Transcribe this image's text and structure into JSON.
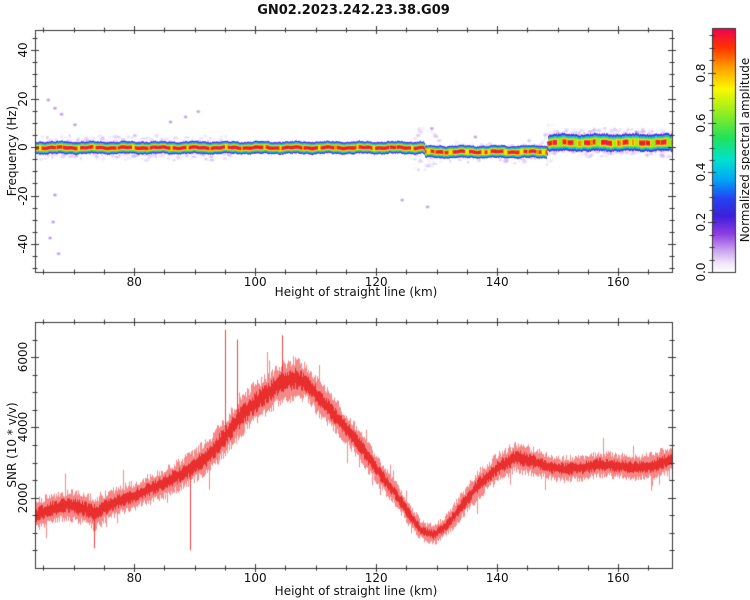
{
  "title": "GN02.2023.242.23.38.G09",
  "figure_bg": "#ffffff",
  "axis_color": "#333333",
  "chart_data": [
    {
      "type": "heatmap",
      "title": "",
      "xlabel": "Height of straight line (km)",
      "ylabel": "Frequency (Hz)",
      "xlim": [
        63.6,
        168.9
      ],
      "ylim": [
        -51.5,
        48.2
      ],
      "x_major_ticks": [
        80,
        100,
        120,
        140,
        160
      ],
      "x_minor_step": 5,
      "y_major_ticks": [
        -40,
        -20,
        0,
        20,
        40
      ],
      "y_minor_step": 5,
      "grid": false,
      "colormap_label": "Normalized spectral amplitude",
      "colorbar_ticks": [
        "0.0",
        "0.2",
        "0.4",
        "0.6",
        "0.8"
      ],
      "colorbar_tick_values": [
        0.0,
        0.2,
        0.4,
        0.6,
        0.8
      ],
      "colorbar_minor_step": 0.05,
      "colorbar_max": 0.98,
      "colormap_stops": [
        [
          0.0,
          "#ffffff"
        ],
        [
          0.04,
          "#efe2fa"
        ],
        [
          0.09,
          "#c9a0ef"
        ],
        [
          0.16,
          "#8a3ae2"
        ],
        [
          0.23,
          "#3d1fd9"
        ],
        [
          0.3,
          "#2443f2"
        ],
        [
          0.38,
          "#00a8f5"
        ],
        [
          0.46,
          "#00e3cf"
        ],
        [
          0.55,
          "#22e25c"
        ],
        [
          0.66,
          "#9bef1e"
        ],
        [
          0.75,
          "#fdf800"
        ],
        [
          0.84,
          "#ff9d00"
        ],
        [
          0.92,
          "#ff3300"
        ],
        [
          1.0,
          "#ef0053"
        ]
      ],
      "ridge_segments": [
        {
          "km_start": 63.6,
          "km_end": 127.8,
          "center_hz": -0.3
        },
        {
          "km_start": 127.8,
          "km_end": 148.1,
          "center_hz": -2.0
        },
        {
          "km_start": 148.1,
          "km_end": 168.9,
          "center_hz": 1.8
        }
      ],
      "band_layers": [
        [
          2.55,
          "#6d2ae5"
        ],
        [
          2.25,
          "#2a3cee"
        ],
        [
          1.95,
          "#0bbdf0"
        ],
        [
          1.6,
          "#2eda65"
        ],
        [
          1.3,
          "#a6e81f"
        ],
        [
          1.05,
          "#ffe400"
        ],
        [
          0.82,
          "#ff8a00"
        ],
        [
          0.66,
          "#e81845"
        ]
      ],
      "wide_band_from_km": 148.1,
      "wide_band_scale": 1.38,
      "core_dropout_threshold": [
        0.8,
        0.62,
        0.48
      ],
      "noise_regions": [
        {
          "km": [
            63.6,
            96.0
          ],
          "hz_spread": 4.6,
          "density": 0.75
        },
        {
          "km": [
            96.0,
            126.0
          ],
          "hz_spread": 3.2,
          "density": 0.1
        },
        {
          "km": [
            126.3,
            130.0
          ],
          "hz_spread": 9.0,
          "density": 0.9
        },
        {
          "km": [
            130.0,
            147.5
          ],
          "hz_spread": 4.2,
          "density": 0.4
        },
        {
          "km": [
            147.6,
            149.2
          ],
          "hz_spread": 7.0,
          "density": 0.85
        },
        {
          "km": [
            149.2,
            168.9
          ],
          "hz_spread": 5.2,
          "density": 0.95
        }
      ],
      "speckles": [
        [
          65.8,
          19.4
        ],
        [
          66.9,
          16.0
        ],
        [
          68.0,
          13.5
        ],
        [
          66.9,
          -19.8
        ],
        [
          66.6,
          -30.9
        ],
        [
          66.1,
          -37.5
        ],
        [
          67.5,
          -44.0
        ],
        [
          70.2,
          9.2
        ],
        [
          86.0,
          10.3
        ],
        [
          88.5,
          12.4
        ],
        [
          90.6,
          14.6
        ],
        [
          124.3,
          -21.9
        ],
        [
          128.5,
          -24.7
        ],
        [
          129.2,
          7.6
        ],
        [
          136.4,
          4.1
        ],
        [
          150.2,
          5.4
        ],
        [
          163.0,
          6.2
        ]
      ]
    },
    {
      "type": "line",
      "title": "",
      "xlabel": "Height of straight line (km)",
      "ylabel": "SNR (10 * v/v)",
      "xlim": [
        63.6,
        168.9
      ],
      "ylim": [
        0,
        7000
      ],
      "x_major_ticks": [
        80,
        100,
        120,
        140,
        160
      ],
      "x_minor_step": 5,
      "y_major_ticks": [
        2000,
        4000,
        6000
      ],
      "y_minor_step": 500,
      "grid": false,
      "series": [
        {
          "name": "SNR",
          "color": "#ee3434"
        }
      ],
      "envelope_points": [
        [
          63.6,
          1500,
          470
        ],
        [
          66,
          1680,
          450
        ],
        [
          69,
          1800,
          460
        ],
        [
          71.5,
          1700,
          470
        ],
        [
          73.5,
          1560,
          520
        ],
        [
          76,
          1820,
          460
        ],
        [
          80,
          2060,
          430
        ],
        [
          84,
          2350,
          450
        ],
        [
          88,
          2700,
          480
        ],
        [
          92,
          3150,
          540
        ],
        [
          95,
          3750,
          600
        ],
        [
          98,
          4400,
          620
        ],
        [
          101,
          4850,
          620
        ],
        [
          104,
          5250,
          620
        ],
        [
          106.5,
          5400,
          640
        ],
        [
          108.5,
          5250,
          600
        ],
        [
          111,
          4750,
          560
        ],
        [
          114,
          4150,
          520
        ],
        [
          117,
          3550,
          470
        ],
        [
          120,
          2800,
          430
        ],
        [
          123,
          2150,
          390
        ],
        [
          125.5,
          1500,
          350
        ],
        [
          127.5,
          1050,
          300
        ],
        [
          129.5,
          950,
          300
        ],
        [
          131.5,
          1200,
          330
        ],
        [
          134,
          1750,
          400
        ],
        [
          137,
          2400,
          430
        ],
        [
          140,
          2850,
          440
        ],
        [
          143,
          3150,
          450
        ],
        [
          145.5,
          3050,
          430
        ],
        [
          148,
          2900,
          410
        ],
        [
          151,
          2800,
          390
        ],
        [
          154,
          2850,
          380
        ],
        [
          157,
          2950,
          390
        ],
        [
          160,
          2900,
          380
        ],
        [
          163,
          2850,
          390
        ],
        [
          165.5,
          2900,
          400
        ],
        [
          168.9,
          3100,
          430
        ]
      ],
      "notable_spikes": [
        [
          73.4,
          560
        ],
        [
          89.3,
          500
        ],
        [
          95.0,
          6780
        ],
        [
          97.0,
          6500
        ],
        [
          104.5,
          6620
        ]
      ]
    }
  ]
}
